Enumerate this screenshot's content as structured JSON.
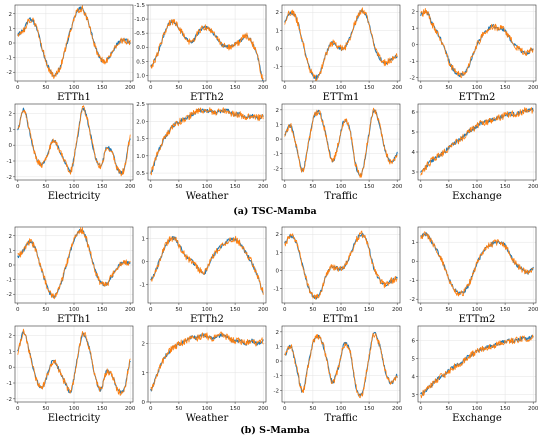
{
  "figure": {
    "colors": {
      "actual": "#1f77b4",
      "predicted": "#ff7f0e"
    },
    "captions": [
      {
        "text": "(a) TSC-Mamba"
      },
      {
        "text": "(b) S-Mamba"
      }
    ]
  },
  "chart_data": [
    {
      "type": "line",
      "group": "TSC-Mamba",
      "title": "ETTh1",
      "xlim": [
        -5,
        205
      ],
      "ylim": [
        -2.6,
        2.6
      ],
      "xticks": [
        0,
        50,
        100,
        150,
        200
      ],
      "yticks": [
        -2,
        -1,
        0,
        1,
        2
      ],
      "series": [
        {
          "values": [
            0.6,
            0.9,
            1.6,
            1.2,
            -0.2,
            -1.5,
            -2.2,
            -1.8,
            -0.5,
            1.0,
            2.1,
            2.3,
            1.3,
            -0.1,
            -1.1,
            -1.2,
            -0.6,
            0.0,
            0.2,
            0.0
          ]
        }
      ]
    },
    {
      "type": "line",
      "group": "TSC-Mamba",
      "title": "ETTh2",
      "xlim": [
        -5,
        205
      ],
      "ylim": [
        -1.5,
        1.2
      ],
      "yinverted": true,
      "xticks": [
        0,
        50,
        100,
        150,
        200
      ],
      "yticks": [
        1.0,
        0.5,
        0.0,
        -0.5,
        -1.0,
        -1.5
      ],
      "series": [
        {
          "values": [
            0.7,
            0.3,
            -0.3,
            -0.8,
            -0.9,
            -0.6,
            -0.3,
            -0.2,
            -0.5,
            -0.7,
            -0.6,
            -0.4,
            -0.1,
            0.0,
            -0.1,
            -0.2,
            -0.4,
            -0.2,
            0.3,
            1.2
          ]
        }
      ]
    },
    {
      "type": "line",
      "group": "TSC-Mamba",
      "title": "ETTm1",
      "xlim": [
        -5,
        205
      ],
      "ylim": [
        -1.8,
        2.4
      ],
      "xticks": [
        0,
        50,
        100,
        150,
        200
      ],
      "yticks": [
        -1,
        0,
        1,
        2
      ],
      "series": [
        {
          "values": [
            1.5,
            2.0,
            1.6,
            0.4,
            -0.9,
            -1.6,
            -1.3,
            -0.3,
            0.3,
            0.1,
            0.0,
            0.6,
            1.5,
            2.1,
            1.6,
            0.3,
            -0.5,
            -0.8,
            -0.6,
            -0.4
          ]
        }
      ]
    },
    {
      "type": "line",
      "group": "TSC-Mamba",
      "title": "ETTm2",
      "xlim": [
        -5,
        205
      ],
      "ylim": [
        -2.2,
        2.4
      ],
      "xticks": [
        0,
        50,
        100,
        150,
        200
      ],
      "yticks": [
        -2,
        -1,
        0,
        1,
        2
      ],
      "series": [
        {
          "values": [
            1.8,
            2.0,
            1.2,
            0.6,
            -0.2,
            -1.2,
            -1.7,
            -1.8,
            -1.4,
            -0.4,
            0.3,
            0.8,
            1.1,
            1.0,
            0.9,
            0.4,
            -0.1,
            -0.4,
            -0.5,
            -0.3
          ]
        }
      ]
    },
    {
      "type": "line",
      "group": "TSC-Mamba",
      "title": "Electricity",
      "xlim": [
        -5,
        205
      ],
      "ylim": [
        -2.2,
        2.6
      ],
      "xticks": [
        0,
        50,
        100,
        150,
        200
      ],
      "yticks": [
        -2,
        -1,
        0,
        1,
        2
      ],
      "series": [
        {
          "values": [
            1.0,
            2.3,
            0.8,
            -0.7,
            -1.2,
            -0.6,
            0.3,
            -0.3,
            -1.1,
            -1.6,
            0.3,
            2.3,
            1.2,
            -0.6,
            -1.3,
            -0.2,
            -0.5,
            -1.6,
            -1.5,
            0.5
          ]
        }
      ]
    },
    {
      "type": "line",
      "group": "TSC-Mamba",
      "title": "Weather",
      "xlim": [
        -5,
        205
      ],
      "ylim": [
        0.3,
        2.5
      ],
      "xticks": [
        0,
        50,
        100,
        150,
        200
      ],
      "yticks": [
        0.5,
        1.0,
        1.5,
        2.0,
        2.5
      ],
      "series": [
        {
          "values": [
            0.5,
            1.0,
            1.4,
            1.7,
            1.9,
            2.0,
            2.1,
            2.2,
            2.3,
            2.3,
            2.3,
            2.25,
            2.3,
            2.3,
            2.2,
            2.2,
            2.1,
            2.15,
            2.1,
            2.15
          ]
        }
      ]
    },
    {
      "type": "line",
      "group": "TSC-Mamba",
      "title": "Traffic",
      "xlim": [
        -5,
        205
      ],
      "ylim": [
        -2.8,
        2.4
      ],
      "xticks": [
        0,
        50,
        100,
        150,
        200
      ],
      "yticks": [
        -2,
        -1,
        0,
        1,
        2
      ],
      "series": [
        {
          "values": [
            0.3,
            0.9,
            -0.6,
            -2.2,
            -0.3,
            1.6,
            1.7,
            0.2,
            -1.5,
            -0.4,
            1.2,
            0.6,
            -1.8,
            -2.4,
            -0.2,
            1.9,
            1.0,
            -0.8,
            -1.6,
            -1.0
          ]
        }
      ]
    },
    {
      "type": "line",
      "group": "TSC-Mamba",
      "title": "Exchange",
      "xlim": [
        -5,
        205
      ],
      "ylim": [
        2.6,
        6.4
      ],
      "xticks": [
        0,
        50,
        100,
        150,
        200
      ],
      "yticks": [
        3,
        4,
        5,
        6
      ],
      "series": [
        {
          "values": [
            3.0,
            3.3,
            3.6,
            3.8,
            4.0,
            4.3,
            4.5,
            4.7,
            5.0,
            5.2,
            5.4,
            5.5,
            5.6,
            5.7,
            5.8,
            5.9,
            5.9,
            6.0,
            6.1,
            6.1
          ]
        }
      ]
    },
    {
      "type": "line",
      "group": "S-Mamba",
      "title": "ETTh1",
      "xlim": [
        -5,
        205
      ],
      "ylim": [
        -2.6,
        2.6
      ],
      "xticks": [
        0,
        50,
        100,
        150,
        200
      ],
      "yticks": [
        -2,
        -1,
        0,
        1,
        2
      ],
      "series": [
        {
          "values": [
            0.6,
            1.0,
            1.6,
            1.1,
            -0.3,
            -1.5,
            -2.2,
            -1.6,
            -0.3,
            1.1,
            2.1,
            2.3,
            1.2,
            -0.3,
            -1.2,
            -1.3,
            -0.7,
            -0.1,
            0.2,
            0.1
          ]
        }
      ]
    },
    {
      "type": "line",
      "group": "S-Mamba",
      "title": "ETTh2",
      "xlim": [
        -5,
        205
      ],
      "ylim": [
        -1.8,
        1.5
      ],
      "xticks": [
        0,
        50,
        100,
        150,
        200
      ],
      "yticks": [
        -1,
        0,
        1
      ],
      "series": [
        {
          "values": [
            -0.8,
            -0.3,
            0.4,
            0.9,
            1.0,
            0.6,
            0.2,
            0.0,
            -0.3,
            -0.5,
            0.0,
            0.4,
            0.7,
            0.9,
            1.0,
            0.8,
            0.4,
            0.0,
            -0.6,
            -1.3
          ]
        }
      ]
    },
    {
      "type": "line",
      "group": "S-Mamba",
      "title": "ETTm1",
      "xlim": [
        -5,
        205
      ],
      "ylim": [
        -1.8,
        2.4
      ],
      "xticks": [
        0,
        50,
        100,
        150,
        200
      ],
      "yticks": [
        -1,
        0,
        1,
        2
      ],
      "series": [
        {
          "values": [
            1.5,
            1.9,
            1.5,
            0.3,
            -0.9,
            -1.5,
            -1.2,
            -0.3,
            0.2,
            0.1,
            0.2,
            0.8,
            1.6,
            2.0,
            1.5,
            0.2,
            -0.5,
            -0.8,
            -0.6,
            -0.4
          ]
        }
      ]
    },
    {
      "type": "line",
      "group": "S-Mamba",
      "title": "ETTm2",
      "xlim": [
        -5,
        205
      ],
      "ylim": [
        -2.2,
        1.8
      ],
      "xticks": [
        0,
        50,
        100,
        150,
        200
      ],
      "yticks": [
        -2,
        -1,
        0,
        1
      ],
      "series": [
        {
          "values": [
            1.3,
            1.4,
            0.9,
            0.4,
            -0.3,
            -1.1,
            -1.6,
            -1.7,
            -1.3,
            -0.5,
            0.2,
            0.7,
            0.9,
            1.0,
            0.9,
            0.4,
            -0.1,
            -0.4,
            -0.6,
            -0.4
          ]
        }
      ]
    },
    {
      "type": "line",
      "group": "S-Mamba",
      "title": "Electricity",
      "xlim": [
        -5,
        205
      ],
      "ylim": [
        -2.2,
        2.6
      ],
      "xticks": [
        0,
        50,
        100,
        150,
        200
      ],
      "yticks": [
        -2,
        -1,
        0,
        1,
        2
      ],
      "series": [
        {
          "values": [
            1.0,
            2.2,
            0.9,
            -0.6,
            -1.3,
            -0.5,
            0.4,
            -0.2,
            -1.0,
            -1.5,
            0.4,
            2.1,
            1.3,
            -0.5,
            -1.4,
            -0.3,
            -0.6,
            -1.5,
            -1.4,
            0.4
          ]
        }
      ]
    },
    {
      "type": "line",
      "group": "S-Mamba",
      "title": "Weather",
      "xlim": [
        -5,
        205
      ],
      "ylim": [
        0.0,
        2.6
      ],
      "xticks": [
        0,
        50,
        100,
        150,
        200
      ],
      "yticks": [
        0,
        1,
        2
      ],
      "series": [
        {
          "values": [
            0.4,
            0.9,
            1.4,
            1.7,
            1.9,
            2.0,
            2.1,
            2.2,
            2.2,
            2.3,
            2.2,
            2.2,
            2.3,
            2.2,
            2.1,
            2.1,
            2.0,
            2.1,
            2.0,
            2.1
          ]
        }
      ]
    },
    {
      "type": "line",
      "group": "S-Mamba",
      "title": "Traffic",
      "xlim": [
        -5,
        205
      ],
      "ylim": [
        -2.8,
        2.4
      ],
      "xticks": [
        0,
        50,
        100,
        150,
        200
      ],
      "yticks": [
        -2,
        -1,
        0,
        1,
        2
      ],
      "series": [
        {
          "values": [
            0.4,
            1.0,
            -0.5,
            -2.1,
            -0.2,
            1.5,
            1.6,
            0.3,
            -1.4,
            -0.5,
            1.1,
            0.7,
            -1.7,
            -2.3,
            -0.3,
            1.8,
            1.1,
            -0.7,
            -1.5,
            -1.0
          ]
        }
      ]
    },
    {
      "type": "line",
      "group": "S-Mamba",
      "title": "Exchange",
      "xlim": [
        -5,
        205
      ],
      "ylim": [
        2.6,
        6.8
      ],
      "xticks": [
        0,
        50,
        100,
        150,
        200
      ],
      "yticks": [
        3,
        4,
        5,
        6
      ],
      "series": [
        {
          "values": [
            3.0,
            3.3,
            3.6,
            3.9,
            4.1,
            4.4,
            4.6,
            4.8,
            5.1,
            5.3,
            5.5,
            5.6,
            5.7,
            5.8,
            5.9,
            6.0,
            6.0,
            6.1,
            6.1,
            6.2
          ]
        }
      ]
    }
  ]
}
